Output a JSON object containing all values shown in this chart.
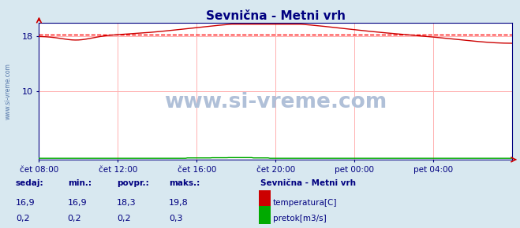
{
  "title": "Sevnična - Metni vrh",
  "bg_color": "#d8e8f0",
  "plot_bg_color": "#ffffff",
  "grid_color": "#ffb0b0",
  "title_color": "#000080",
  "axis_color": "#000080",
  "tick_color": "#000080",
  "temp_color": "#cc0000",
  "flow_color": "#00aa00",
  "avg_line_color": "#ff0000",
  "avg_value": 18.3,
  "temp_min": 16.9,
  "temp_max": 19.8,
  "temp_avg": 18.3,
  "temp_current": 16.9,
  "flow_min": 0.2,
  "flow_max": 0.3,
  "flow_avg": 0.2,
  "flow_current": 0.2,
  "ylim": [
    0,
    20
  ],
  "yticks": [
    10,
    18
  ],
  "watermark": "www.si-vreme.com",
  "watermark_color": "#b0c0d8",
  "station_name": "Sevnična - Metni vrh",
  "label_temp": "temperatura[C]",
  "label_flow": "pretok[m3/s]",
  "xlabels": [
    "čet 08:00",
    "čet 12:00",
    "čet 16:00",
    "čet 20:00",
    "pet 00:00",
    "pet 04:00"
  ],
  "n_points": 288
}
